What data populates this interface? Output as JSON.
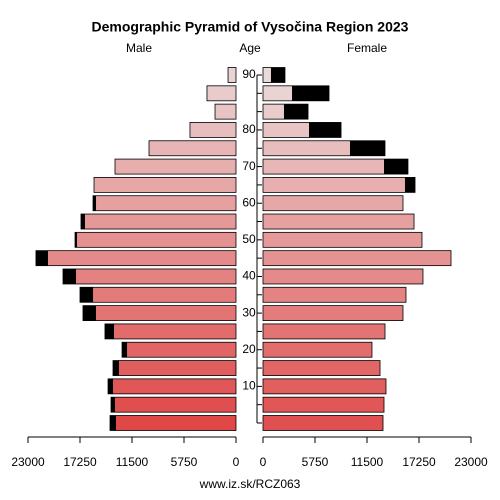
{
  "chart_data": {
    "type": "pyramid",
    "title": "Demographic Pyramid of Vysočina Region 2023",
    "left_label": "Male",
    "center_label": "Age",
    "right_label": "Female",
    "footer": "www.iz.sk/RCZ063",
    "categories": [
      null,
      null,
      "10",
      null,
      "20",
      null,
      "30",
      null,
      "40",
      null,
      "50",
      null,
      "60",
      null,
      "70",
      null,
      "80",
      null,
      null,
      "90"
    ],
    "series": [
      {
        "name": "Male",
        "color": "#e04848",
        "values": [
          13930,
          13820,
          14150,
          13600,
          12600,
          14490,
          16920,
          17250,
          19130,
          22120,
          17800,
          17140,
          15810,
          15700,
          13380,
          9620,
          5090,
          2320,
          3210,
          880
        ]
      },
      {
        "name": "Female",
        "color": "#e05050",
        "values": [
          13270,
          13380,
          13600,
          12940,
          12050,
          13490,
          15480,
          15810,
          17690,
          20790,
          17580,
          16700,
          15480,
          16810,
          16030,
          13490,
          8630,
          4980,
          7300,
          2430
        ]
      }
    ],
    "xlim": [
      0,
      23000
    ],
    "xticks": [
      {
        "value": 23000,
        "label": "23000"
      },
      {
        "value": 17250,
        "label": "17250"
      },
      {
        "value": 11500,
        "label": "11500"
      },
      {
        "value": 5750,
        "label": "5750"
      },
      0
    ]
  }
}
